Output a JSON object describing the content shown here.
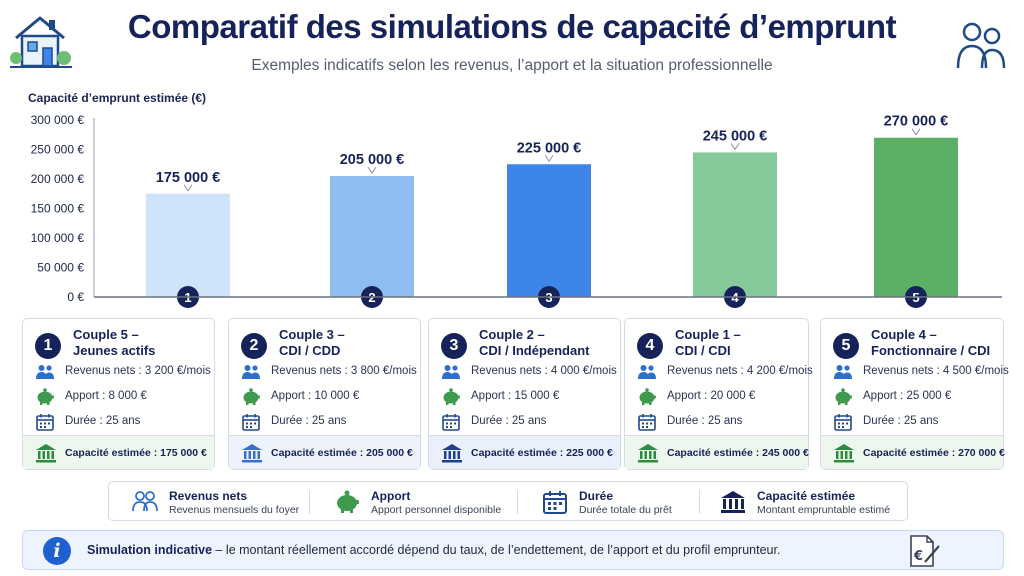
{
  "header": {
    "title": "Comparatif des simulations de capacité d’emprunt",
    "subtitle": "Exemples indicatifs selon les revenus, l’apport et la situation professionnelle",
    "left_icon": "house-icon",
    "right_icon": "people-icon"
  },
  "chart_data": {
    "type": "bar",
    "ylabel": "Capacité d’emprunt estimée (€)",
    "ylim": [
      0,
      300000
    ],
    "yticks": [
      "0 €",
      "50 000 €",
      "100 000 €",
      "150 000 €",
      "200 000 €",
      "250 000 €",
      "300 000 €"
    ],
    "ytick_values": [
      0,
      50000,
      100000,
      150000,
      200000,
      250000,
      300000
    ],
    "grid": false,
    "categories": [
      "1",
      "2",
      "3",
      "4",
      "5"
    ],
    "values": [
      175000,
      205000,
      225000,
      245000,
      270000
    ],
    "value_labels": [
      "175 000 €",
      "205 000 €",
      "225 000 €",
      "245 000 €",
      "270 000 €"
    ],
    "bar_colors": [
      "#cfe3fb",
      "#8fbdf2",
      "#3d86e8",
      "#85c99a",
      "#5cb065"
    ]
  },
  "cards": [
    {
      "num": "1",
      "title1": "Couple 5 –",
      "title2": "Jeunes actifs",
      "revenus": "Revenus nets : 3 200 €/mois",
      "apport": "Apport : 8 000 €",
      "duree": "Durée : 25 ans",
      "capacite": "Capacité estimée : 175 000 €",
      "foot_bg": "#eef7ee",
      "foot_color": "#2e8b3e"
    },
    {
      "num": "2",
      "title1": "Couple 3 –",
      "title2": "CDI / CDD",
      "revenus": "Revenus nets : 3 800 €/mois",
      "apport": "Apport : 10 000 €",
      "duree": "Durée : 25 ans",
      "capacite": "Capacité estimée : 205 000 €",
      "foot_bg": "#eef3fb",
      "foot_color": "#3a6fc8"
    },
    {
      "num": "3",
      "title1": "Couple 2 –",
      "title2": "CDI / Indépendant",
      "revenus": "Revenus nets : 4 000 €/mois",
      "apport": "Apport : 15 000 €",
      "duree": "Durée : 25 ans",
      "capacite": "Capacité estimée : 225 000 €",
      "foot_bg": "#e9f0fb",
      "foot_color": "#1f3f8f"
    },
    {
      "num": "4",
      "title1": "Couple 1 –",
      "title2": "CDI / CDI",
      "revenus": "Revenus nets : 4 200 €/mois",
      "apport": "Apport : 20 000 €",
      "duree": "Durée : 25 ans",
      "capacite": "Capacité estimée : 245 000 €",
      "foot_bg": "#eef7ee",
      "foot_color": "#2e8b3e"
    },
    {
      "num": "5",
      "title1": "Couple 4 –",
      "title2": "Fonctionnaire / CDI",
      "revenus": "Revenus nets : 4 500 €/mois",
      "apport": "Apport : 25 000 €",
      "duree": "Durée : 25 ans",
      "capacite": "Capacité estimée : 270 000 €",
      "foot_bg": "#eef7ee",
      "foot_color": "#2e8b3e"
    }
  ],
  "legend": [
    {
      "title": "Revenus nets",
      "desc": "Revenus mensuels du foyer",
      "icon": "people-icon"
    },
    {
      "title": "Apport",
      "desc": "Apport personnel disponible",
      "icon": "piggy-bank-icon"
    },
    {
      "title": "Durée",
      "desc": "Durée totale du prêt",
      "icon": "calendar-icon"
    },
    {
      "title": "Capacité estimée",
      "desc": "Montant empruntable estimé",
      "icon": "bank-icon"
    }
  ],
  "note": {
    "bold": "Simulation indicative",
    "text": " – le montant réellement accordé dépend du taux, de l’endettement, de l’apport et du profil emprunteur.",
    "icon": "info-icon",
    "doc_icon": "euro-document-icon"
  },
  "colors": {
    "navy": "#16235a",
    "blue_icon": "#2f6fcc",
    "green_icon": "#3f9a4f"
  }
}
